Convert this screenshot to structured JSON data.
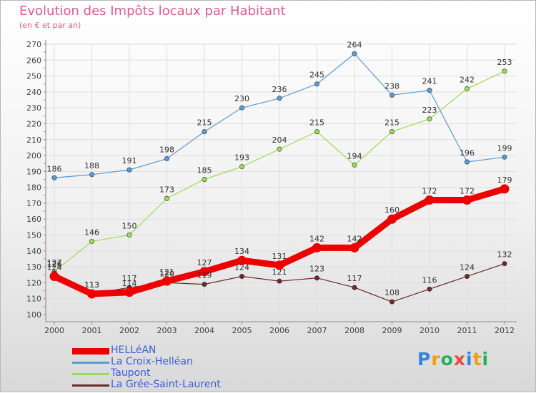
{
  "header": {
    "title": "Evolution des Impôts locaux par Habitant",
    "subtitle": "(en € et par an)"
  },
  "chart_data": {
    "type": "line",
    "title": "Evolution des Impôts locaux par Habitant",
    "subtitle": "(en € et par an)",
    "xlabel": "",
    "ylabel": "",
    "x": [
      "2000",
      "2001",
      "2002",
      "2003",
      "2004",
      "2005",
      "2006",
      "2007",
      "2008",
      "2009",
      "2010",
      "2011",
      "2012"
    ],
    "ylim": [
      100,
      270
    ],
    "yticks": [
      100,
      110,
      120,
      130,
      140,
      150,
      160,
      170,
      180,
      190,
      200,
      210,
      220,
      230,
      240,
      250,
      260,
      270
    ],
    "grid": true,
    "legend_position": "bottom-left",
    "series": [
      {
        "name": "HELLéAN",
        "color": "#ee0000",
        "values": [
          124,
          113,
          114,
          121,
          127,
          134,
          131,
          142,
          142,
          160,
          172,
          172,
          179
        ]
      },
      {
        "name": "La Croix-Helléan",
        "color": "#5b9bd5",
        "values": [
          186,
          188,
          191,
          198,
          215,
          230,
          236,
          245,
          264,
          238,
          241,
          196,
          199
        ]
      },
      {
        "name": "Taupont",
        "color": "#99dd55",
        "values": [
          127,
          146,
          150,
          173,
          185,
          193,
          204,
          215,
          194,
          215,
          223,
          242,
          253
        ]
      },
      {
        "name": "La Grée-Saint-Laurent",
        "color": "#6b2b2b",
        "values": [
          126,
          113,
          117,
          120,
          119,
          124,
          121,
          123,
          117,
          108,
          116,
          124,
          132
        ]
      }
    ]
  },
  "legend": {
    "items": [
      {
        "label": "HELLéAN",
        "color": "#ee0000"
      },
      {
        "label": "La Croix-Helléan",
        "color": "#5b9bd5"
      },
      {
        "label": "Taupont",
        "color": "#99dd55"
      },
      {
        "label": "La Grée-Saint-Laurent",
        "color": "#6b2b2b"
      }
    ]
  },
  "brand": {
    "letters": [
      "P",
      "r",
      "o",
      "x",
      "i",
      "t",
      "i"
    ],
    "colors": [
      "#2e86de",
      "#f39c12",
      "#27ae60",
      "#e74c3c",
      "#2e86de",
      "#f39c12",
      "#27ae60"
    ]
  }
}
